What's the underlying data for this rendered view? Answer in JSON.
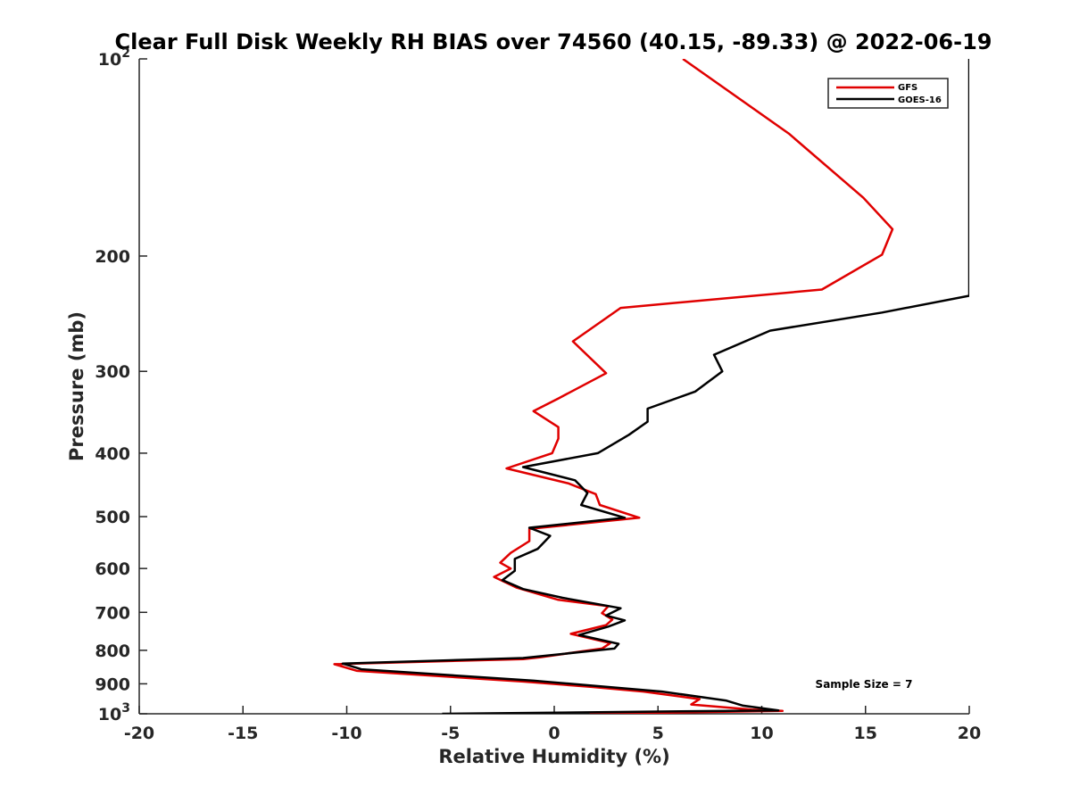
{
  "chart_data": {
    "type": "line",
    "title": "Clear Full Disk Weekly RH BIAS over 74560 (40.15, -89.33) @ 2022-06-19",
    "xlabel": "Relative Humidity (%)",
    "ylabel": "Pressure (mb)",
    "xlim": [
      -20,
      20
    ],
    "ylim": [
      100,
      1000
    ],
    "y_scale": "log",
    "y_reversed": true,
    "grid": false,
    "legend_position": "top-right",
    "x_ticks": [
      "-20",
      "-15",
      "-10",
      "-5",
      "0",
      "5",
      "10",
      "15",
      "20"
    ],
    "y_ticks": [
      {
        "value": 100,
        "base": "10",
        "exp": "2"
      },
      {
        "value": 200,
        "label": "200"
      },
      {
        "value": 300,
        "label": "300"
      },
      {
        "value": 400,
        "label": "400"
      },
      {
        "value": 500,
        "label": "500"
      },
      {
        "value": 600,
        "label": "600"
      },
      {
        "value": 700,
        "label": "700"
      },
      {
        "value": 800,
        "label": "800"
      },
      {
        "value": 900,
        "label": "900"
      },
      {
        "value": 1000,
        "base": "10",
        "exp": "3"
      }
    ],
    "annotation": "Sample Size = 7",
    "series": [
      {
        "name": "GFS",
        "color": "#e00000",
        "points": [
          [
            6.2,
            100
          ],
          [
            11.3,
            130
          ],
          [
            14.9,
            163
          ],
          [
            16.3,
            182
          ],
          [
            15.8,
            199
          ],
          [
            12.9,
            225
          ],
          [
            3.2,
            240
          ],
          [
            0.9,
            270
          ],
          [
            2.5,
            302
          ],
          [
            0.2,
            330
          ],
          [
            -1.0,
            345
          ],
          [
            0.2,
            365
          ],
          [
            0.2,
            380
          ],
          [
            -0.1,
            400
          ],
          [
            -2.3,
            422
          ],
          [
            0.7,
            445
          ],
          [
            2.0,
            462
          ],
          [
            2.2,
            480
          ],
          [
            4.1,
            502
          ],
          [
            -1.2,
            522
          ],
          [
            -1.2,
            545
          ],
          [
            -2.1,
            568
          ],
          [
            -2.6,
            588
          ],
          [
            -2.1,
            600
          ],
          [
            -2.9,
            618
          ],
          [
            -1.8,
            642
          ],
          [
            0.2,
            670
          ],
          [
            2.6,
            685
          ],
          [
            2.3,
            702
          ],
          [
            2.8,
            718
          ],
          [
            2.5,
            732
          ],
          [
            0.8,
            755
          ],
          [
            2.7,
            780
          ],
          [
            2.3,
            795
          ],
          [
            -0.7,
            820
          ],
          [
            -1.5,
            825
          ],
          [
            -10.6,
            840
          ],
          [
            -9.5,
            860
          ],
          [
            -1.5,
            893
          ],
          [
            1.8,
            910
          ],
          [
            4.3,
            925
          ],
          [
            7.0,
            950
          ],
          [
            6.6,
            968
          ],
          [
            9.5,
            985
          ],
          [
            11.0,
            990
          ],
          [
            1.7,
            1000
          ]
        ]
      },
      {
        "name": "GOES-16",
        "color": "#000000",
        "points": [
          [
            20.0,
            100
          ],
          [
            20.0,
            230
          ],
          [
            15.8,
            244
          ],
          [
            10.4,
            260
          ],
          [
            7.7,
            283
          ],
          [
            8.1,
            300
          ],
          [
            6.8,
            322
          ],
          [
            4.5,
            342
          ],
          [
            4.5,
            358
          ],
          [
            3.6,
            375
          ],
          [
            2.1,
            400
          ],
          [
            -1.5,
            420
          ],
          [
            1.0,
            440
          ],
          [
            1.6,
            460
          ],
          [
            1.3,
            480
          ],
          [
            3.4,
            502
          ],
          [
            -1.2,
            520
          ],
          [
            -0.2,
            535
          ],
          [
            -0.8,
            560
          ],
          [
            -1.9,
            580
          ],
          [
            -1.9,
            605
          ],
          [
            -2.5,
            625
          ],
          [
            -1.5,
            645
          ],
          [
            0.4,
            665
          ],
          [
            3.2,
            690
          ],
          [
            2.5,
            708
          ],
          [
            3.4,
            720
          ],
          [
            2.6,
            736
          ],
          [
            1.2,
            758
          ],
          [
            3.1,
            782
          ],
          [
            2.9,
            795
          ],
          [
            -1.5,
            822
          ],
          [
            -10.2,
            838
          ],
          [
            -9.3,
            855
          ],
          [
            -1.0,
            890
          ],
          [
            5.2,
            925
          ],
          [
            8.3,
            955
          ],
          [
            9.1,
            972
          ],
          [
            10.8,
            988
          ],
          [
            -5.4,
            1000
          ]
        ]
      }
    ]
  }
}
